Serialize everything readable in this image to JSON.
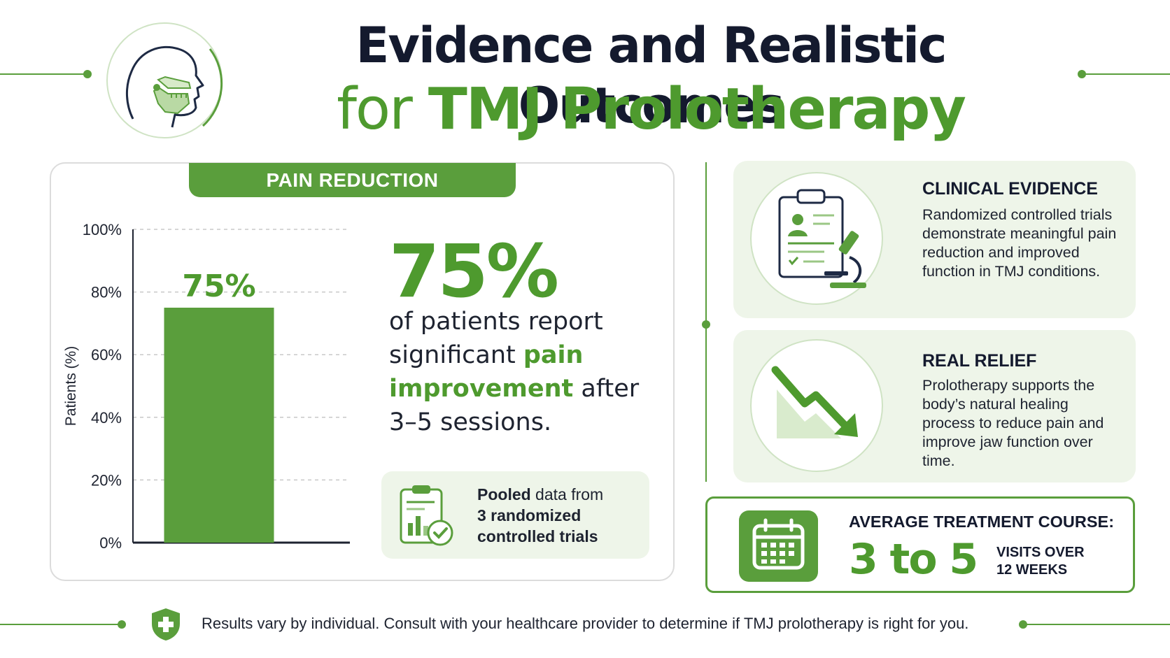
{
  "header": {
    "title_line1": "Evidence and Realistic Outcomes",
    "title_line2_prefix": "for",
    "title_line2_main": "TMJ Prolotherapy",
    "icon": "head-jaw-icon"
  },
  "pain_card": {
    "tab_label": "PAIN REDUCTION",
    "big_stat": "75%",
    "desc_part1": "of patients report significant ",
    "desc_highlight": "pain improvement",
    "desc_part2": " after 3–5 sessions.",
    "pooled_bold1": "Pooled",
    "pooled_rest1": " data from",
    "pooled_bold2": "3 randomized controlled trials",
    "pooled_icon": "clipboard-chart-check-icon"
  },
  "chart_data": {
    "type": "bar",
    "categories": [
      ""
    ],
    "values": [
      75
    ],
    "data_labels": [
      "75%"
    ],
    "ylabel": "Patients (%)",
    "ylim": [
      0,
      100
    ],
    "yticks": [
      0,
      20,
      40,
      60,
      80,
      100
    ],
    "ytick_labels": [
      "0%",
      "20%",
      "40%",
      "60%",
      "80%",
      "100%"
    ],
    "grid": true,
    "bar_color": "#5a9e3c"
  },
  "clinical_evidence": {
    "title": "CLINICAL EVIDENCE",
    "text": "Randomized controlled trials demonstrate meaningful pain reduction and improved function in TMJ conditions.",
    "icon": "clipboard-microscope-icon"
  },
  "real_relief": {
    "title": "REAL RELIEF",
    "text": "Prolotherapy supports the body’s natural healing process to reduce pain and improve jaw function over time.",
    "icon": "down-trend-arrow-icon"
  },
  "treatment_course": {
    "label": "AVERAGE TREATMENT COURSE:",
    "value": "3 to 5",
    "unit_line1": "VISITS OVER",
    "unit_line2": "12 WEEKS",
    "icon": "calendar-icon"
  },
  "footer": {
    "disclaimer": "Results vary by individual. Consult with your healthcare provider to determine if TMJ prolotherapy is right for you.",
    "icon": "shield-plus-icon"
  },
  "colors": {
    "accent": "#5a9e3c",
    "title_dark": "#141a2e",
    "panel_bg": "#eef5e9"
  }
}
